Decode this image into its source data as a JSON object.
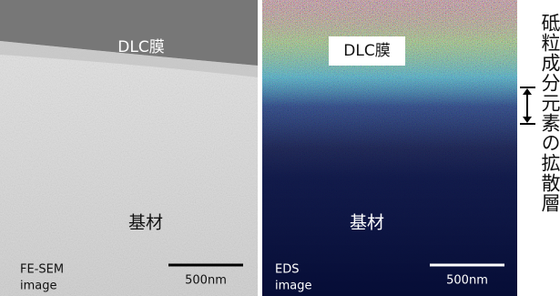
{
  "left_panel": {
    "film_label": "DLC膜",
    "substrate_label": "基材",
    "caption_line1": "FE-SEM",
    "caption_line2": "image",
    "scale_label": "500nm"
  },
  "right_panel": {
    "film_label": "DLC膜",
    "substrate_label": "基材",
    "caption_line1": "EDS",
    "caption_line2": "image",
    "scale_label": "500nm"
  },
  "side_label": "砥粒成分元素の拡散層"
}
